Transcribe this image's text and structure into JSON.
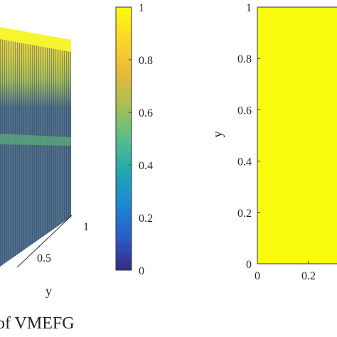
{
  "caption": "of VMEFG",
  "colormap": [
    "#352a87",
    "#2c5cc6",
    "#1e87d5",
    "#20a8b0",
    "#59bd8c",
    "#a7bf55",
    "#e9b93a",
    "#fcd62b",
    "#f9fb0e"
  ],
  "chart_data": [
    {
      "type": "surface",
      "title": "",
      "ylabel": "y",
      "y_ticks": [
        "0.5",
        "1"
      ],
      "z_min": 0,
      "z_max": 1,
      "colorbar": {
        "ticks": [
          "0",
          "0.2",
          "0.4",
          "0.6",
          "0.8",
          "1"
        ],
        "range": [
          0,
          1
        ]
      }
    },
    {
      "type": "heatmap",
      "title": "",
      "ylabel": "y",
      "y_ticks": [
        "0",
        "0.2",
        "0.4",
        "0.6",
        "0.8",
        "1"
      ],
      "x_ticks": [
        "0",
        "0.2"
      ],
      "ylim": [
        0,
        1
      ],
      "value": 1,
      "fill_color": "#f9fb0e"
    }
  ]
}
